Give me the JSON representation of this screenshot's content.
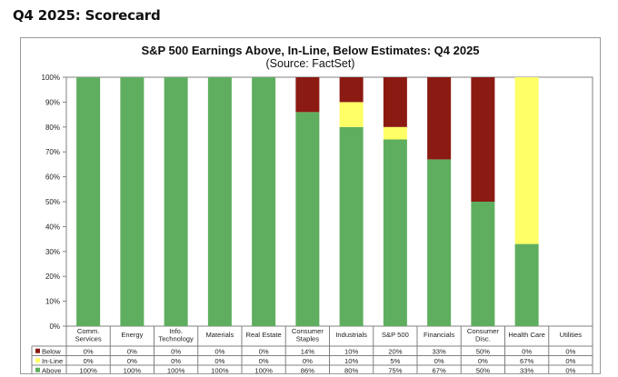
{
  "page": {
    "heading": "Q4 2025: Scorecard"
  },
  "chart_data": {
    "type": "bar",
    "stacked": true,
    "title": "S&P 500 Earnings Above, In-Line, Below Estimates: Q4 2025",
    "subtitle": "(Source: FactSet)",
    "ylim": [
      0,
      100
    ],
    "yticks": [
      "0%",
      "10%",
      "20%",
      "30%",
      "40%",
      "50%",
      "60%",
      "70%",
      "80%",
      "90%",
      "100%"
    ],
    "categories": [
      [
        "Comm.",
        "Services"
      ],
      [
        "Energy"
      ],
      [
        "Info.",
        "Technology"
      ],
      [
        "Materials"
      ],
      [
        "Real Estate"
      ],
      [
        "Consumer",
        "Staples"
      ],
      [
        "Industrials"
      ],
      [
        "S&P 500"
      ],
      [
        "Financials"
      ],
      [
        "Consumer",
        "Disc."
      ],
      [
        "Health Care"
      ],
      [
        "Utilities"
      ]
    ],
    "series": [
      {
        "name": "Below",
        "color": "#8b1a12",
        "values": [
          0,
          0,
          0,
          0,
          0,
          14,
          10,
          20,
          33,
          50,
          0,
          0
        ],
        "labels": [
          "0%",
          "0%",
          "0%",
          "0%",
          "0%",
          "14%",
          "10%",
          "20%",
          "33%",
          "50%",
          "0%",
          "0%"
        ]
      },
      {
        "name": "In-Line",
        "color": "#ffff66",
        "values": [
          0,
          0,
          0,
          0,
          0,
          0,
          10,
          5,
          0,
          0,
          67,
          0
        ],
        "labels": [
          "0%",
          "0%",
          "0%",
          "0%",
          "0%",
          "0%",
          "10%",
          "5%",
          "0%",
          "0%",
          "67%",
          "0%"
        ]
      },
      {
        "name": "Above",
        "color": "#5fae5f",
        "values": [
          100,
          100,
          100,
          100,
          100,
          86,
          80,
          75,
          67,
          50,
          33,
          0
        ],
        "labels": [
          "100%",
          "100%",
          "100%",
          "100%",
          "100%",
          "86%",
          "80%",
          "75%",
          "67%",
          "50%",
          "33%",
          "0%"
        ]
      }
    ]
  }
}
